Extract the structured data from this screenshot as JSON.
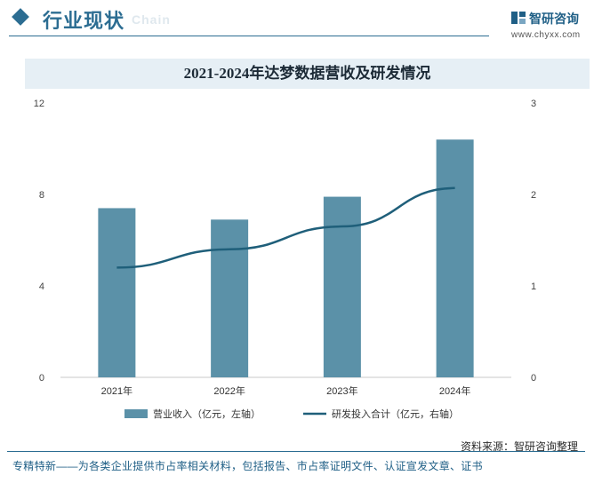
{
  "header": {
    "section_title": "行业现状",
    "section_subtitle": "Chain",
    "brand_name": "智研咨询",
    "brand_url": "www.chyxx.com"
  },
  "chart_data": {
    "type": "bar+line",
    "title": "2021-2024年达梦数据营收及研发情况",
    "categories": [
      "2021年",
      "2022年",
      "2023年",
      "2024年"
    ],
    "series": [
      {
        "name": "营业收入（亿元，左轴）",
        "type": "bar",
        "axis": "left",
        "values": [
          7.4,
          6.9,
          7.9,
          10.4
        ],
        "color": "#5b91a8"
      },
      {
        "name": "研发投入合计（亿元，右轴）",
        "type": "line",
        "axis": "right",
        "values": [
          1.2,
          1.4,
          1.65,
          2.07
        ],
        "color": "#1f5f7a"
      }
    ],
    "y_left": {
      "min": 0,
      "max": 12,
      "ticks": [
        "0",
        "4",
        "8",
        "12"
      ]
    },
    "y_right": {
      "min": 0,
      "max": 3,
      "ticks": [
        "0",
        "1",
        "2",
        "3"
      ]
    },
    "grid": false,
    "legend_position": "bottom"
  },
  "footer": {
    "source": "资料来源：智研咨询整理",
    "note": "专精特新——为各类企业提供市占率相关材料，包括报告、市占率证明文件、认证宣发文章、证书"
  }
}
